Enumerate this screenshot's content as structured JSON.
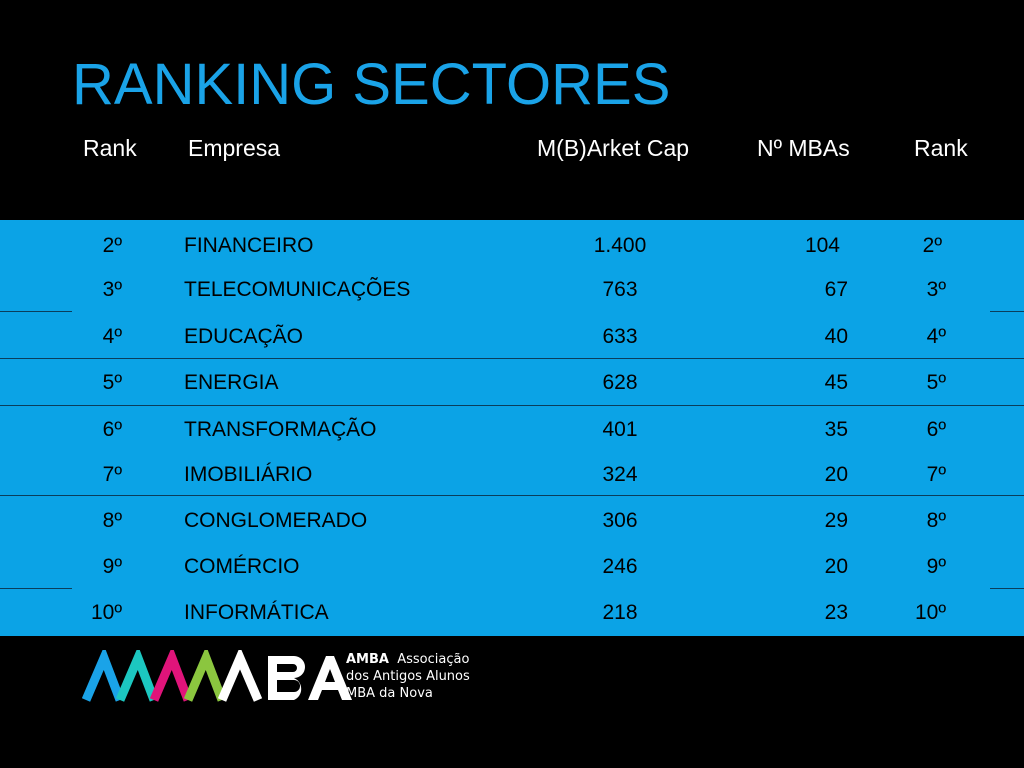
{
  "title": "RANKING SECTORES",
  "headers": {
    "rank": "Rank",
    "empresa": "Empresa",
    "market_cap": "M(B)Arket Cap",
    "mbas": "Nº MBAs",
    "rank2": "Rank"
  },
  "rows": [
    {
      "rank": "2º",
      "empresa": "FINANCEIRO",
      "market_cap": "1.400",
      "mbas": "104",
      "rank2": "2º"
    },
    {
      "rank": "3º",
      "empresa": "TELECOMUNICAÇÕES",
      "market_cap": "763",
      "mbas": "67",
      "rank2": "3º"
    },
    {
      "rank": "4º",
      "empresa": "EDUCAÇÃO",
      "market_cap": "633",
      "mbas": "40",
      "rank2": "4º"
    },
    {
      "rank": "5º",
      "empresa": "ENERGIA",
      "market_cap": "628",
      "mbas": "45",
      "rank2": "5º"
    },
    {
      "rank": "6º",
      "empresa": "TRANSFORMAÇÃO",
      "market_cap": "401",
      "mbas": "35",
      "rank2": "6º"
    },
    {
      "rank": "7º",
      "empresa": "IMOBILIÁRIO",
      "market_cap": "324",
      "mbas": "20",
      "rank2": "7º"
    },
    {
      "rank": "8º",
      "empresa": "CONGLOMERADO",
      "market_cap": "306",
      "mbas": "29",
      "rank2": "8º"
    },
    {
      "rank": "9º",
      "empresa": "COMÉRCIO",
      "market_cap": "246",
      "mbas": "20",
      "rank2": "9º"
    },
    {
      "rank": "10º",
      "empresa": "INFORMÁTICA",
      "market_cap": "218",
      "mbas": "23",
      "rank2": "10º"
    }
  ],
  "logo": {
    "wordmark": "MBA",
    "name": "AMBA",
    "line1": "Associação",
    "line2": "dos Antigos Alunos",
    "line3": "MBA da Nova"
  },
  "colors": {
    "background": "#000000",
    "title": "#1aa3e8",
    "band": "#0ba3e6"
  }
}
